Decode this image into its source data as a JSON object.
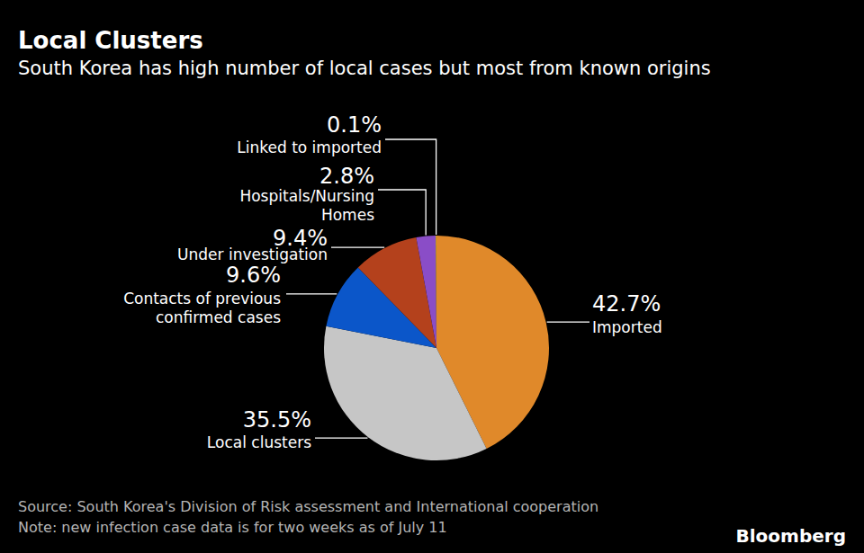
{
  "chart_data": {
    "type": "pie",
    "title": "Local Clusters",
    "subtitle": "South Korea has high number of local cases but most from known origins",
    "categories": [
      "Imported",
      "Local clusters",
      "Contacts of previous confirmed cases",
      "Under investigation",
      "Hospitals/Nursing Homes",
      "Linked to imported"
    ],
    "values": [
      42.7,
      35.5,
      9.6,
      9.4,
      2.8,
      0.1
    ],
    "value_labels": [
      "42.7%",
      "35.5%",
      "9.6%",
      "9.4%",
      "2.8%",
      "0.1%"
    ],
    "colors": [
      "#e0892a",
      "#c6c6c6",
      "#0b56c9",
      "#b4411c",
      "#8a4dc7",
      "#e6c229"
    ],
    "data_labels": true,
    "source": "Source: South Korea's Division of Risk assessment and International cooperation",
    "note": "Note: new infection case data is for two weeks as of July 11",
    "credit": "Bloomberg"
  }
}
